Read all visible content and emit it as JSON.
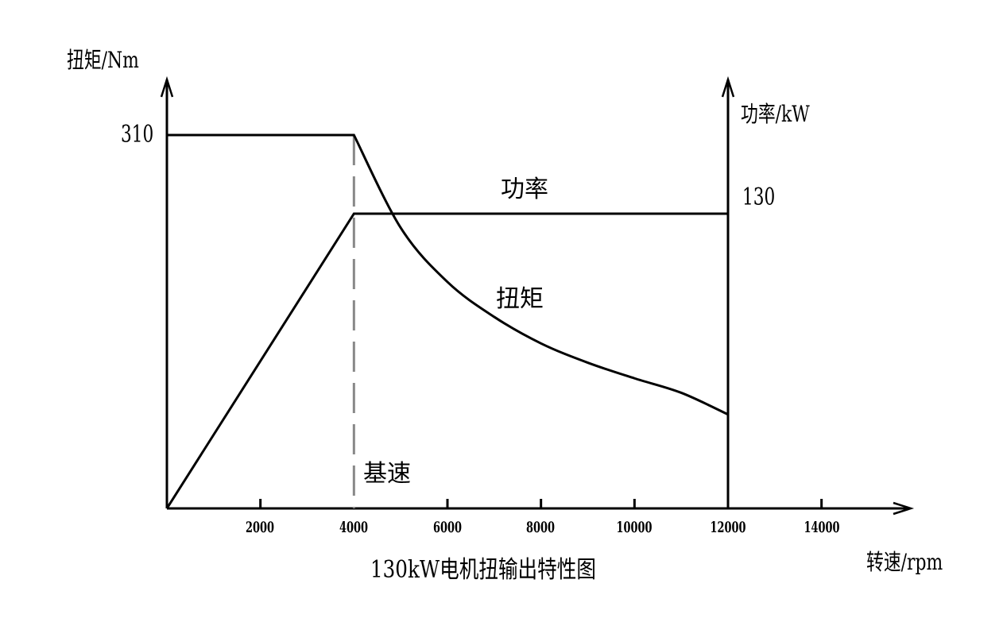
{
  "chart_data": {
    "type": "line",
    "title": "130kW电机扭输出特性图",
    "xlabel": "转速/rpm",
    "ylabel_left": "扭矩/Nm",
    "ylabel_right": "功率/kW",
    "x_ticks": [
      2000,
      4000,
      6000,
      8000,
      10000,
      12000,
      14000
    ],
    "x_tick_labels": [
      "2000",
      "4000",
      "6000",
      "8000",
      "10000",
      "12000",
      "14000"
    ],
    "xlim": [
      0,
      15500
    ],
    "y_left_ticks": [
      {
        "value": 310,
        "label": "310"
      }
    ],
    "y_right_ticks": [
      {
        "value": 130,
        "label": "130"
      }
    ],
    "grid": false,
    "legend": false,
    "annotations": [
      {
        "text": "基速",
        "x": 4000,
        "note": "base speed, dashed vertical line at 4000 rpm"
      },
      {
        "text": "功率",
        "series": "power"
      },
      {
        "text": "扭矩",
        "series": "torque"
      }
    ],
    "series": [
      {
        "name": "扭矩",
        "axis": "left",
        "unit": "Nm",
        "x": [
          0,
          4000,
          5000,
          6000,
          7000,
          8000,
          9000,
          10000,
          11000,
          12000
        ],
        "values": [
          310,
          310,
          233,
          188,
          159,
          137,
          121,
          108,
          96,
          78
        ]
      },
      {
        "name": "功率",
        "axis": "right",
        "unit": "kW",
        "x": [
          0,
          4000,
          12000
        ],
        "values": [
          0,
          130,
          130
        ]
      }
    ]
  },
  "labels": {
    "y_left_title": "扭矩/Nm",
    "y_right_title": "功率/kW",
    "y_left_max": "310",
    "y_right_max": "130",
    "x_title": "转速/rpm",
    "caption": "130kW电机扭输出特性图",
    "power_label": "功率",
    "torque_label": "扭矩",
    "base_speed_label": "基速",
    "x_ticks": [
      "2000",
      "4000",
      "6000",
      "8000",
      "10000",
      "12000",
      "14000"
    ]
  },
  "colors": {
    "line": "#000000",
    "base_speed_dash": "#888888",
    "background": "#ffffff"
  }
}
